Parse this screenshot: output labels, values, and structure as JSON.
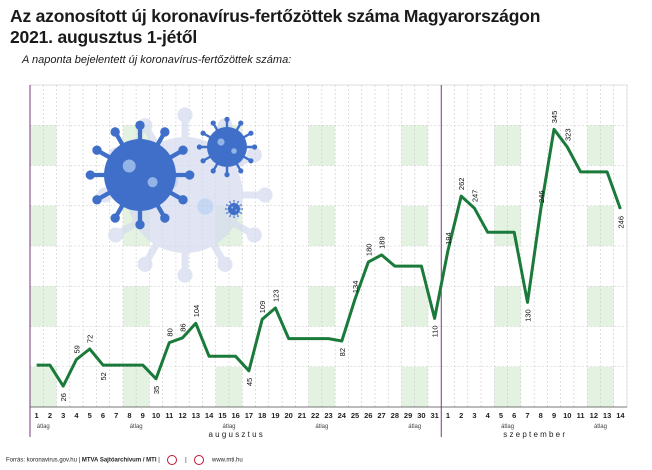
{
  "header": {
    "title_line1": "Az azonosított új koronavírus-fertőzöttek száma Magyarországon",
    "title_line2": "2021. augusztus 1-jétől",
    "subtitle": "A naponta bejelentett új koronavírus-fertőzöttek száma:"
  },
  "footer": {
    "source_label": "Forrás: koronavirus.gov.hu",
    "archive_label": "MTVA Sajtóarchívum / MTI",
    "url": "www.mti.hu"
  },
  "colors": {
    "line": "#1a7a3a",
    "band": "#e3f2e1",
    "grid": "#c9c9c9",
    "separator": "#7a3a7a"
  },
  "icons": [
    "virus-illustration",
    "mtva-logo",
    "mti-logo"
  ],
  "chart_data": {
    "type": "line",
    "xlabel": "",
    "ylabel": "",
    "ylim": [
      0,
      400
    ],
    "grid": true,
    "weekend_bands": true,
    "months": [
      {
        "label": "a u g u s z t u s",
        "start": 0,
        "end": 30
      },
      {
        "label": "s z e p t e m b e r",
        "start": 31,
        "end": 44
      }
    ],
    "categories": [
      "1",
      "2",
      "3",
      "4",
      "5",
      "6",
      "7",
      "8",
      "9",
      "10",
      "11",
      "12",
      "13",
      "14",
      "15",
      "16",
      "17",
      "18",
      "19",
      "20",
      "21",
      "22",
      "23",
      "24",
      "25",
      "26",
      "27",
      "28",
      "29",
      "30",
      "31",
      "1",
      "2",
      "3",
      "4",
      "5",
      "6",
      "7",
      "8",
      "9",
      "10",
      "11",
      "12",
      "13",
      "14"
    ],
    "avg_label": "átlag",
    "avg_positions": [
      0.5,
      7.5,
      14.5,
      21.5,
      28.5,
      35.5,
      42.5
    ],
    "values": [
      52,
      52,
      26,
      59,
      72,
      52,
      52,
      52,
      52,
      35,
      80,
      86,
      104,
      63,
      63,
      63,
      45,
      109,
      123,
      85,
      85,
      85,
      85,
      82,
      134,
      180,
      189,
      175,
      175,
      175,
      110,
      194,
      262,
      247,
      217,
      217,
      217,
      130,
      246,
      345,
      323,
      292,
      292,
      292,
      246
    ],
    "data_labels": [
      {
        "i": 2,
        "text": "26"
      },
      {
        "i": 3,
        "text": "59"
      },
      {
        "i": 4,
        "text": "72"
      },
      {
        "i": 5,
        "text": "52"
      },
      {
        "i": 9,
        "text": "35"
      },
      {
        "i": 10,
        "text": "80"
      },
      {
        "i": 11,
        "text": "86"
      },
      {
        "i": 12,
        "text": "104"
      },
      {
        "i": 16,
        "text": "45"
      },
      {
        "i": 17,
        "text": "109"
      },
      {
        "i": 18,
        "text": "123"
      },
      {
        "i": 23,
        "text": "82"
      },
      {
        "i": 24,
        "text": "134"
      },
      {
        "i": 25,
        "text": "180"
      },
      {
        "i": 26,
        "text": "189"
      },
      {
        "i": 30,
        "text": "110"
      },
      {
        "i": 31,
        "text": "194"
      },
      {
        "i": 32,
        "text": "262"
      },
      {
        "i": 33,
        "text": "247"
      },
      {
        "i": 37,
        "text": "130"
      },
      {
        "i": 38,
        "text": "246"
      },
      {
        "i": 39,
        "text": "345"
      },
      {
        "i": 40,
        "text": "323"
      },
      {
        "i": 44,
        "text": "246"
      }
    ]
  }
}
